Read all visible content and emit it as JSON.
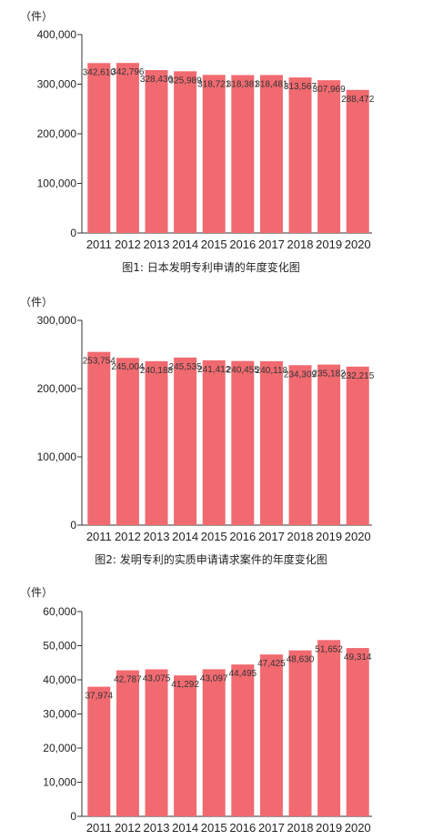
{
  "colors": {
    "bar": "#f06a70",
    "axis": "#333333"
  },
  "chart_data": [
    {
      "type": "bar",
      "unit_label": "（件）",
      "caption": "图1: 日本发明专利申请的年度变化图",
      "categories": [
        "2011",
        "2012",
        "2013",
        "2014",
        "2015",
        "2016",
        "2017",
        "2018",
        "2019",
        "2020"
      ],
      "values": [
        342610,
        342796,
        328436,
        325989,
        318721,
        318381,
        318481,
        313567,
        307969,
        288472
      ],
      "value_labels": [
        "342,610",
        "342,796",
        "328,436",
        "325,989",
        "318,721",
        "318,381",
        "318,481",
        "313,567",
        "307,969",
        "288,472"
      ],
      "ylim": [
        0,
        400000
      ],
      "yticks": [
        0,
        100000,
        200000,
        300000,
        400000
      ],
      "ytick_labels": [
        "0",
        "100,000",
        "200,000",
        "300,000",
        "400,000"
      ]
    },
    {
      "type": "bar",
      "unit_label": "（件）",
      "caption": "图2: 发明专利的实质申请请求案件的年度变化图",
      "categories": [
        "2011",
        "2012",
        "2013",
        "2014",
        "2015",
        "2016",
        "2017",
        "2018",
        "2019",
        "2020"
      ],
      "values": [
        253754,
        245004,
        240188,
        245535,
        241412,
        240455,
        240118,
        234309,
        235182,
        232215
      ],
      "value_labels": [
        "253,754",
        "245,004",
        "240,188",
        "245,535",
        "241,412",
        "240,455",
        "240,118",
        "234,309",
        "235,182",
        "232,215"
      ],
      "ylim": [
        0,
        300000
      ],
      "yticks": [
        0,
        100000,
        200000,
        300000
      ],
      "ytick_labels": [
        "0",
        "100,000",
        "200,000",
        "300,000"
      ]
    },
    {
      "type": "bar",
      "unit_label": "（件）",
      "caption": "",
      "categories": [
        "2011",
        "2012",
        "2013",
        "2014",
        "2015",
        "2016",
        "2017",
        "2018",
        "2019",
        "2020"
      ],
      "values": [
        37974,
        42787,
        43075,
        41292,
        43097,
        44495,
        47425,
        48630,
        51652,
        49314
      ],
      "value_labels": [
        "37,974",
        "42,787",
        "43,075",
        "41,292",
        "43,097",
        "44,495",
        "47,425",
        "48,630",
        "51,652",
        "49,314"
      ],
      "ylim": [
        0,
        60000
      ],
      "yticks": [
        0,
        10000,
        20000,
        30000,
        40000,
        50000,
        60000
      ],
      "ytick_labels": [
        "0",
        "10,000",
        "20,000",
        "30,000",
        "40,000",
        "50,000",
        "60,000"
      ]
    }
  ]
}
